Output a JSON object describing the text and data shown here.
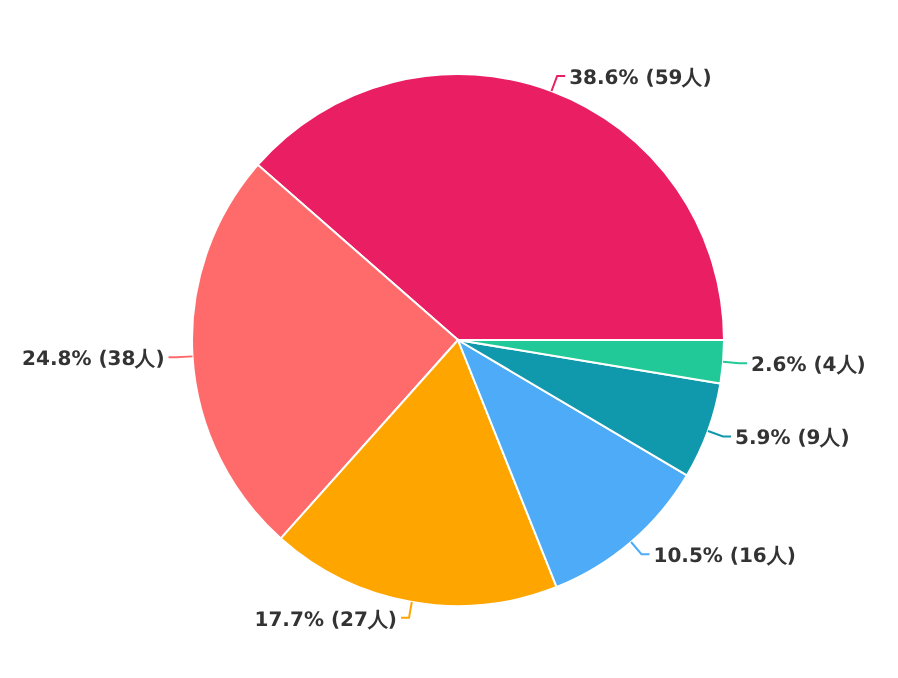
{
  "chart_data": {
    "type": "pie",
    "categories": [
      null,
      null,
      null,
      null,
      null,
      null
    ],
    "values": [
      59,
      38,
      27,
      16,
      9,
      4
    ],
    "colors": [
      "#e91e63",
      "#ff6b6b",
      "#ffa500",
      "#4dabf7",
      "#1098ad",
      "#20c997"
    ],
    "value_labels": [
      "38.6% (59人)",
      "24.8% (38人)",
      "17.7% (27人)",
      "10.5% (16人)",
      "5.9% (9人)",
      "2.6% (4人)"
    ]
  }
}
